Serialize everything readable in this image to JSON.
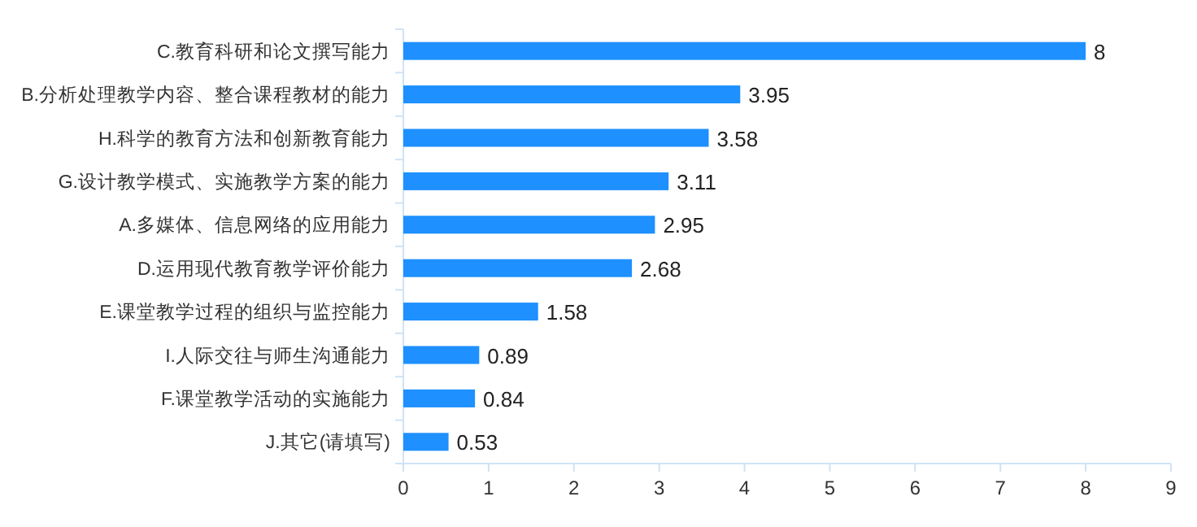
{
  "chart_data": {
    "type": "bar",
    "orientation": "horizontal",
    "categories": [
      "C.教育科研和论文撰写能力",
      "B.分析处理教学内容、整合课程教材的能力",
      "H.科学的教育方法和创新教育能力",
      "G.设计教学模式、实施教学方案的能力",
      "A.多媒体、信息网络的应用能力",
      "D.运用现代教育教学评价能力",
      "E.课堂教学过程的组织与监控能力",
      "I.人际交往与师生沟通能力",
      "F.课堂教学活动的实施能力",
      "J.其它(请填写)"
    ],
    "values": [
      8,
      3.95,
      3.58,
      3.11,
      2.95,
      2.68,
      1.58,
      0.89,
      0.84,
      0.53
    ],
    "color": "#1e90ff",
    "xlim": [
      0,
      9
    ],
    "xticks": [
      0,
      1,
      2,
      3,
      4,
      5,
      6,
      7,
      8,
      9
    ],
    "data_labels": true
  }
}
